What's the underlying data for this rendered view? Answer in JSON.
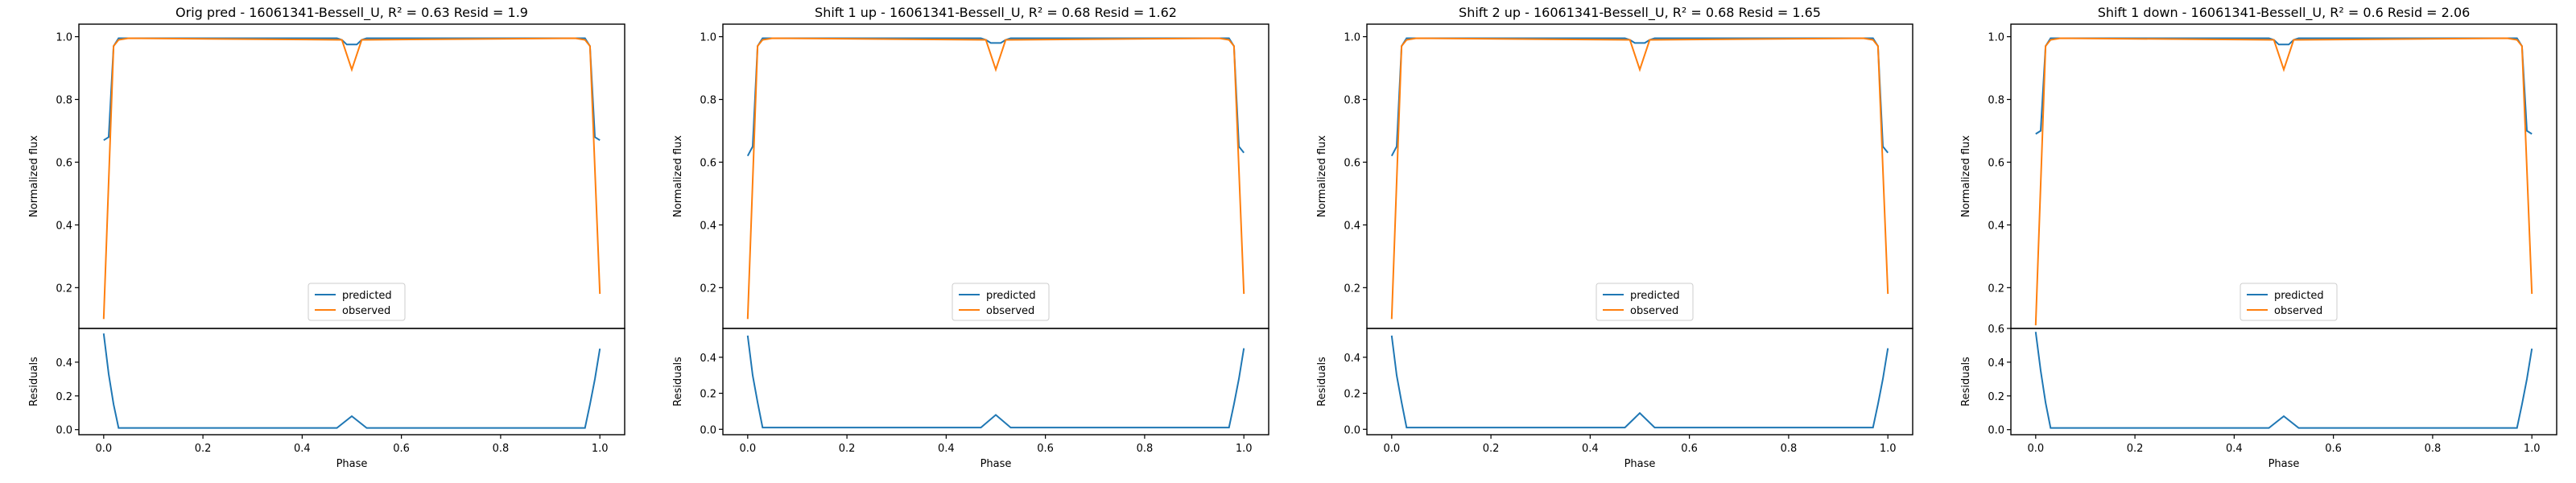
{
  "chart_data": [
    {
      "type": "line",
      "title": "Orig pred - 16061341-Bessell_U, R² = 0.63 Resid = 1.9",
      "top": {
        "ylabel": "Normalized flux",
        "ylim": [
          0.07,
          1.04
        ],
        "yticks": [
          "0.2",
          "0.4",
          "0.6",
          "0.8",
          "1.0"
        ],
        "legend": "lower-center",
        "series": [
          {
            "name": "predicted",
            "color": "#1f77b4",
            "x": [
              0,
              0.01,
              0.02,
              0.03,
              0.05,
              0.47,
              0.48,
              0.49,
              0.5,
              0.51,
              0.52,
              0.53,
              0.95,
              0.97,
              0.98,
              0.99,
              1.0
            ],
            "y": [
              0.67,
              0.68,
              0.97,
              0.995,
              0.995,
              0.995,
              0.99,
              0.975,
              0.975,
              0.975,
              0.99,
              0.995,
              0.995,
              0.995,
              0.97,
              0.68,
              0.67
            ]
          },
          {
            "name": "observed",
            "color": "#ff7f0e",
            "x": [
              0,
              0.02,
              0.03,
              0.05,
              0.48,
              0.5,
              0.52,
              0.95,
              0.97,
              0.98,
              1.0
            ],
            "y": [
              0.1,
              0.97,
              0.99,
              0.995,
              0.99,
              0.895,
              0.99,
              0.995,
              0.99,
              0.97,
              0.18
            ]
          }
        ]
      },
      "bottom": {
        "xlabel": "Phase",
        "ylabel": "Residuals",
        "ylim": [
          -0.03,
          0.6
        ],
        "yticks": [
          "0.0",
          "0.2",
          "0.4"
        ],
        "xlim": [
          -0.05,
          1.05
        ],
        "xticks": [
          "0.0",
          "0.2",
          "0.4",
          "0.6",
          "0.8",
          "1.0"
        ],
        "series": [
          {
            "name": "residuals",
            "color": "#1f77b4",
            "x": [
              0,
              0.01,
              0.02,
              0.03,
              0.47,
              0.5,
              0.53,
              0.97,
              0.98,
              0.99,
              1.0
            ],
            "y": [
              0.57,
              0.33,
              0.15,
              0.01,
              0.01,
              0.08,
              0.01,
              0.01,
              0.15,
              0.3,
              0.48
            ]
          }
        ]
      }
    },
    {
      "type": "line",
      "title": "Shift 1 up - 16061341-Bessell_U, R² = 0.68 Resid = 1.62",
      "top": {
        "ylabel": "Normalized flux",
        "ylim": [
          0.07,
          1.04
        ],
        "yticks": [
          "0.2",
          "0.4",
          "0.6",
          "0.8",
          "1.0"
        ],
        "legend": "lower-center",
        "series": [
          {
            "name": "predicted",
            "color": "#1f77b4",
            "x": [
              0,
              0.01,
              0.02,
              0.03,
              0.05,
              0.47,
              0.48,
              0.49,
              0.5,
              0.51,
              0.52,
              0.53,
              0.95,
              0.97,
              0.98,
              0.99,
              1.0
            ],
            "y": [
              0.62,
              0.65,
              0.97,
              0.995,
              0.995,
              0.995,
              0.99,
              0.98,
              0.98,
              0.98,
              0.99,
              0.995,
              0.995,
              0.995,
              0.97,
              0.65,
              0.63
            ]
          },
          {
            "name": "observed",
            "color": "#ff7f0e",
            "x": [
              0,
              0.02,
              0.03,
              0.05,
              0.48,
              0.5,
              0.52,
              0.95,
              0.97,
              0.98,
              1.0
            ],
            "y": [
              0.1,
              0.97,
              0.99,
              0.995,
              0.99,
              0.895,
              0.99,
              0.995,
              0.99,
              0.97,
              0.18
            ]
          }
        ]
      },
      "bottom": {
        "xlabel": "Phase",
        "ylabel": "Residuals",
        "ylim": [
          -0.03,
          0.56
        ],
        "yticks": [
          "0.0",
          "0.2",
          "0.4"
        ],
        "xlim": [
          -0.05,
          1.05
        ],
        "xticks": [
          "0.0",
          "0.2",
          "0.4",
          "0.6",
          "0.8",
          "1.0"
        ],
        "series": [
          {
            "name": "residuals",
            "color": "#1f77b4",
            "x": [
              0,
              0.01,
              0.02,
              0.03,
              0.47,
              0.5,
              0.53,
              0.97,
              0.98,
              0.99,
              1.0
            ],
            "y": [
              0.52,
              0.3,
              0.15,
              0.01,
              0.01,
              0.08,
              0.01,
              0.01,
              0.14,
              0.28,
              0.45
            ]
          }
        ]
      }
    },
    {
      "type": "line",
      "title": "Shift 2 up - 16061341-Bessell_U, R² = 0.68 Resid = 1.65",
      "top": {
        "ylabel": "Normalized flux",
        "ylim": [
          0.07,
          1.04
        ],
        "yticks": [
          "0.2",
          "0.4",
          "0.6",
          "0.8",
          "1.0"
        ],
        "legend": "lower-center",
        "series": [
          {
            "name": "predicted",
            "color": "#1f77b4",
            "x": [
              0,
              0.01,
              0.02,
              0.03,
              0.05,
              0.47,
              0.48,
              0.49,
              0.5,
              0.51,
              0.52,
              0.53,
              0.95,
              0.97,
              0.98,
              0.99,
              1.0
            ],
            "y": [
              0.62,
              0.65,
              0.97,
              0.995,
              0.995,
              0.995,
              0.99,
              0.98,
              0.98,
              0.98,
              0.99,
              0.995,
              0.995,
              0.995,
              0.97,
              0.65,
              0.63
            ]
          },
          {
            "name": "observed",
            "color": "#ff7f0e",
            "x": [
              0,
              0.02,
              0.03,
              0.05,
              0.48,
              0.5,
              0.52,
              0.95,
              0.97,
              0.98,
              1.0
            ],
            "y": [
              0.1,
              0.97,
              0.99,
              0.995,
              0.99,
              0.895,
              0.99,
              0.995,
              0.99,
              0.97,
              0.18
            ]
          }
        ]
      },
      "bottom": {
        "xlabel": "Phase",
        "ylabel": "Residuals",
        "ylim": [
          -0.03,
          0.56
        ],
        "yticks": [
          "0.0",
          "0.2",
          "0.4"
        ],
        "xlim": [
          -0.05,
          1.05
        ],
        "xticks": [
          "0.0",
          "0.2",
          "0.4",
          "0.6",
          "0.8",
          "1.0"
        ],
        "series": [
          {
            "name": "residuals",
            "color": "#1f77b4",
            "x": [
              0,
              0.01,
              0.02,
              0.03,
              0.47,
              0.5,
              0.53,
              0.97,
              0.98,
              0.99,
              1.0
            ],
            "y": [
              0.52,
              0.3,
              0.15,
              0.01,
              0.01,
              0.09,
              0.01,
              0.01,
              0.14,
              0.28,
              0.45
            ]
          }
        ]
      }
    },
    {
      "type": "line",
      "title": "Shift 1 down - 16061341-Bessell_U, R² = 0.6 Resid = 2.06",
      "top": {
        "ylabel": "Normalized flux",
        "ylim": [
          0.07,
          1.04
        ],
        "yticks": [
          "0.2",
          "0.4",
          "0.6",
          "0.8",
          "1.0"
        ],
        "legend": "lower-center",
        "series": [
          {
            "name": "predicted",
            "color": "#1f77b4",
            "x": [
              0,
              0.01,
              0.02,
              0.03,
              0.05,
              0.47,
              0.48,
              0.49,
              0.5,
              0.51,
              0.52,
              0.53,
              0.95,
              0.97,
              0.98,
              0.99,
              1.0
            ],
            "y": [
              0.69,
              0.7,
              0.97,
              0.995,
              0.995,
              0.995,
              0.99,
              0.975,
              0.975,
              0.975,
              0.99,
              0.995,
              0.995,
              0.995,
              0.97,
              0.7,
              0.69
            ]
          },
          {
            "name": "observed",
            "color": "#ff7f0e",
            "x": [
              0,
              0.02,
              0.03,
              0.05,
              0.48,
              0.5,
              0.52,
              0.95,
              0.97,
              0.98,
              1.0
            ],
            "y": [
              0.08,
              0.97,
              0.99,
              0.995,
              0.99,
              0.895,
              0.99,
              0.995,
              0.99,
              0.97,
              0.18
            ]
          }
        ]
      },
      "bottom": {
        "xlabel": "Phase",
        "ylabel": "Residuals",
        "ylim": [
          -0.03,
          0.6
        ],
        "yticks": [
          "0.0",
          "0.2",
          "0.4",
          "0.6"
        ],
        "xlim": [
          -0.05,
          1.05
        ],
        "xticks": [
          "0.0",
          "0.2",
          "0.4",
          "0.6",
          "0.8",
          "1.0"
        ],
        "series": [
          {
            "name": "residuals",
            "color": "#1f77b4",
            "x": [
              0,
              0.01,
              0.02,
              0.03,
              0.47,
              0.5,
              0.53,
              0.97,
              0.98,
              0.99,
              1.0
            ],
            "y": [
              0.58,
              0.35,
              0.16,
              0.01,
              0.01,
              0.08,
              0.01,
              0.01,
              0.15,
              0.3,
              0.48
            ]
          }
        ]
      }
    }
  ]
}
